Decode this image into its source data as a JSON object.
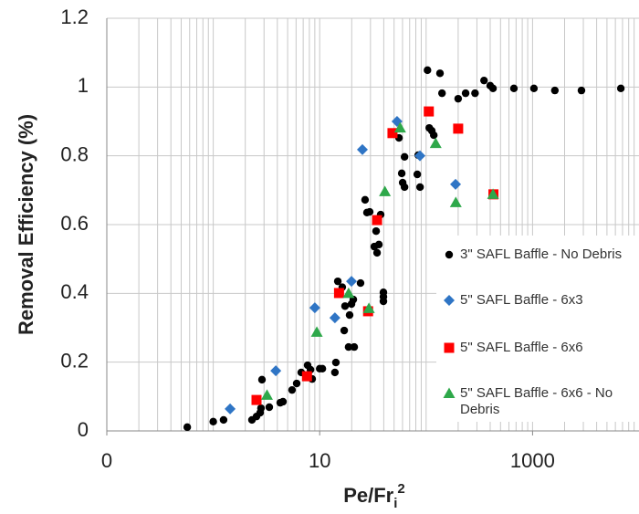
{
  "chart_data": {
    "type": "scatter",
    "ylabel": "Removal Efficiency (%)",
    "xlabel": "Pe/Fr",
    "xlabel_sub": "i",
    "xlabel_sup": "2",
    "xlog": true,
    "xminor_grid": true,
    "grid": true,
    "xlim": [
      0.1,
      10000
    ],
    "xticks": [
      {
        "value": 0.1,
        "label": "0"
      },
      10,
      1000
    ],
    "ylim": [
      0,
      1.2
    ],
    "yticks": [
      0,
      0.2,
      0.4,
      0.6,
      0.8,
      1,
      1.2
    ],
    "legend": "right",
    "series": [
      {
        "name": "3\" SAFL Baffle - No Debris",
        "color": "#000000",
        "marker": "circle",
        "x": [
          0.57,
          1.0,
          1.25,
          2.31,
          2.55,
          2.76,
          2.81,
          2.87,
          3.36,
          4.26,
          4.52,
          5.5,
          6.08,
          6.71,
          7.7,
          8.2,
          8.5,
          10,
          10.6,
          13.9,
          14.2,
          14.8,
          16.3,
          17.0,
          17.3,
          18.7,
          19.1,
          19.9,
          20.7,
          21.1,
          24.2,
          26.7,
          27.8,
          29.5,
          32.6,
          33.9,
          34.6,
          36,
          37.4,
          39.7,
          39.7,
          39.7,
          55.6,
          59,
          60.2,
          62.7,
          62.7,
          82.6,
          84.3,
          87.7,
          103,
          107,
          113,
          118,
          135,
          141,
          200,
          235,
          288,
          350,
          400,
          425,
          668,
          1030,
          1620,
          2880,
          6750
        ],
        "values": [
          0.011,
          0.027,
          0.032,
          0.032,
          0.042,
          0.053,
          0.066,
          0.149,
          0.069,
          0.082,
          0.085,
          0.119,
          0.138,
          0.17,
          0.191,
          0.178,
          0.151,
          0.181,
          0.181,
          0.17,
          0.199,
          0.435,
          0.418,
          0.292,
          0.363,
          0.244,
          0.337,
          0.369,
          0.382,
          0.244,
          0.43,
          0.672,
          0.635,
          0.637,
          0.536,
          0.581,
          0.518,
          0.542,
          0.629,
          0.39,
          0.377,
          0.403,
          0.852,
          0.749,
          0.722,
          0.797,
          0.709,
          0.746,
          0.802,
          0.709,
          1.049,
          0.881,
          0.873,
          0.86,
          1.04,
          0.982,
          0.966,
          0.982,
          0.982,
          1.019,
          1.004,
          0.996,
          0.996,
          0.996,
          0.99,
          0.99,
          0.996
        ]
      },
      {
        "name": "5\" SAFL Baffle - 6x3",
        "color": "#2f75c5",
        "marker": "diamond",
        "x": [
          1.44,
          3.87,
          9.0,
          13.9,
          19.9,
          25.2,
          53.3,
          87.5,
          189
        ],
        "values": [
          0.064,
          0.175,
          0.358,
          0.329,
          0.435,
          0.818,
          0.9,
          0.8,
          0.717
        ]
      },
      {
        "name": "5\" SAFL Baffle - 6x6",
        "color": "#ff0000",
        "marker": "square",
        "x": [
          2.55,
          7.6,
          15.2,
          28.5,
          34.6,
          48.3,
          106,
          200,
          429
        ],
        "values": [
          0.09,
          0.159,
          0.401,
          0.348,
          0.613,
          0.866,
          0.929,
          0.879,
          0.688
        ]
      },
      {
        "name": "5\" SAFL Baffle - 6x6 - No Debris",
        "color": "#2ea84a",
        "marker": "triangle",
        "x": [
          3.2,
          9.4,
          18.7,
          29,
          41,
          57,
          123,
          190,
          425
        ],
        "values": [
          0.104,
          0.287,
          0.4,
          0.356,
          0.696,
          0.881,
          0.836,
          0.664,
          0.688
        ]
      }
    ]
  }
}
